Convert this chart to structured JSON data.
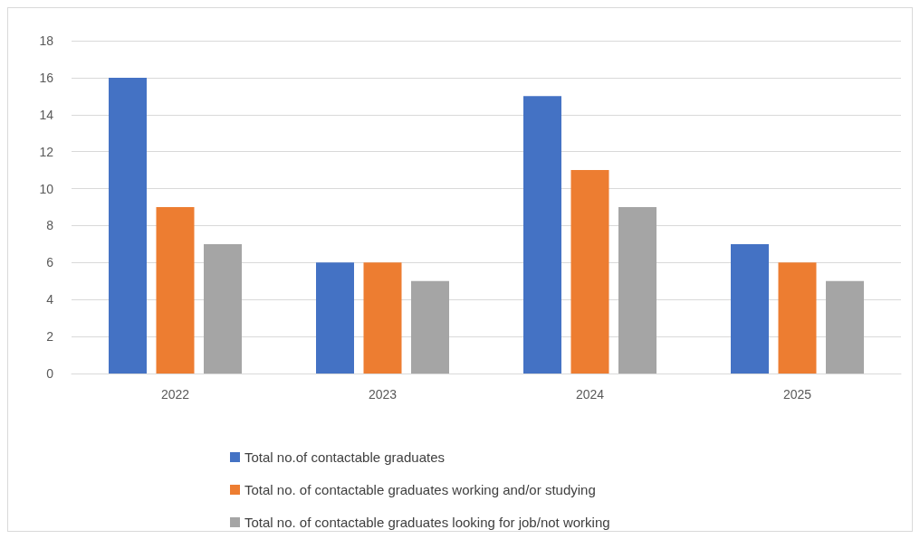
{
  "chart_data": {
    "type": "bar",
    "categories": [
      "2022",
      "2023",
      "2024",
      "2025"
    ],
    "series": [
      {
        "name": "Total no.of contactable graduates",
        "color": "#4472c4",
        "values": [
          16,
          6,
          15,
          7
        ]
      },
      {
        "name": "Total no. of contactable graduates working and/or studying",
        "color": "#ed7d31",
        "values": [
          9,
          6,
          11,
          6
        ]
      },
      {
        "name": "Total no. of contactable graduates looking for job/not working",
        "color": "#a5a5a5",
        "values": [
          7,
          5,
          9,
          5
        ]
      }
    ],
    "ylim": [
      0,
      18
    ],
    "yticks": [
      0,
      2,
      4,
      6,
      8,
      10,
      12,
      14,
      16,
      18
    ],
    "grid": true,
    "legend": "bottom"
  }
}
